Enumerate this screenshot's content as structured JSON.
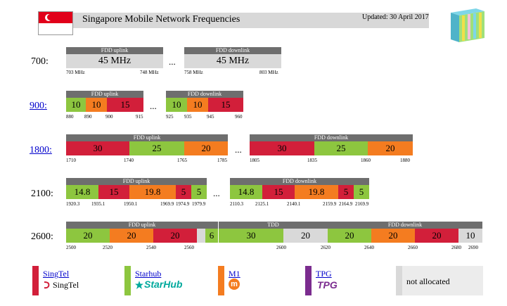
{
  "header": {
    "title": "Singapore Mobile Network Frequencies",
    "updated": "Updated: 30 April 2017"
  },
  "colors": {
    "singtel": "#d21f3a",
    "starhub": "#8dc63f",
    "m1": "#f47c20",
    "tpg": "#7b2c8f",
    "unallocated": "#d9d9d9",
    "header_bar": "#6e6e6e"
  },
  "bands": {
    "b700": {
      "label": "700:",
      "uplink_title": "FDD uplink",
      "downlink_title": "FDD downlink",
      "uplink_value": "45 MHz",
      "downlink_value": "45 MHz",
      "dots": "...",
      "ticks_up": [
        "703 MHz",
        "748 MHz"
      ],
      "ticks_down": [
        "758 MHz",
        "803 MHz"
      ]
    },
    "b900": {
      "label": "900:",
      "uplink_title": "FDD uplink",
      "downlink_title": "FDD downlink",
      "dots": "...",
      "up_values": [
        "10",
        "10",
        "15"
      ],
      "down_values": [
        "10",
        "10",
        "15"
      ],
      "ticks_up": [
        "880",
        "890",
        "900",
        "915"
      ],
      "ticks_down": [
        "925",
        "935",
        "945",
        "960"
      ]
    },
    "b1800": {
      "label": "1800:",
      "uplink_title": "FDD uplink",
      "downlink_title": "FDD downlink",
      "dots": "...",
      "up_values": [
        "30",
        "25",
        "20"
      ],
      "down_values": [
        "30",
        "25",
        "20"
      ],
      "ticks_up": [
        "1710",
        "1740",
        "1765",
        "1785"
      ],
      "ticks_down": [
        "1805",
        "1835",
        "1860",
        "1880"
      ]
    },
    "b2100": {
      "label": "2100:",
      "uplink_title": "FDD uplink",
      "downlink_title": "FDD downlink",
      "dots": "...",
      "up_values": [
        "14.8",
        "15",
        "19.8",
        "5",
        "5"
      ],
      "down_values": [
        "14.8",
        "15",
        "19.8",
        "5",
        "5"
      ],
      "ticks_up": [
        "1920.3",
        "1935.1",
        "1950.1",
        "1969.9",
        "1974.9",
        "1979.9"
      ],
      "ticks_down": [
        "2110.3",
        "2125.1",
        "2140.1",
        "2159.9",
        "2164.9",
        "2169.9"
      ]
    },
    "b2600": {
      "label": "2600:",
      "uplink_title": "FDD uplink",
      "tdd_title": "TDD",
      "downlink_title": "FDD downlink",
      "up_values": [
        "20",
        "20",
        "20",
        "",
        "6"
      ],
      "tdd_values": [
        "30",
        "20"
      ],
      "down_values": [
        "20",
        "20",
        "20",
        "10"
      ],
      "ticks": [
        "2500",
        "2520",
        "2540",
        "2560",
        "2600",
        "2620",
        "2640",
        "2660",
        "2680",
        "2690"
      ]
    }
  },
  "legend": {
    "singtel": {
      "label": "SingTel",
      "brand": "SingTel"
    },
    "starhub": {
      "label": "Starhub",
      "brand": "StarHub"
    },
    "m1": {
      "label": "M1",
      "brand": "m"
    },
    "tpg": {
      "label": "TPG",
      "brand": "TPG"
    },
    "unallocated": {
      "label": "not allocated"
    }
  }
}
